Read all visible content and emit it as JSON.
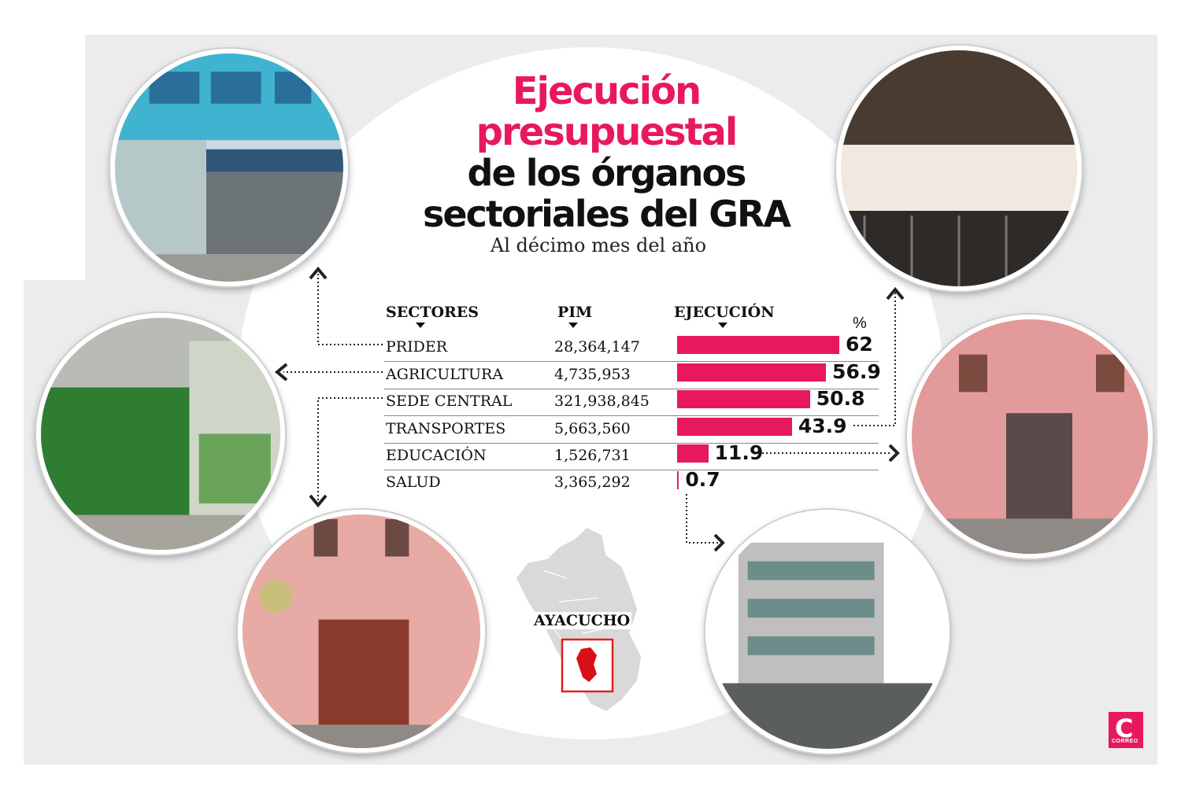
{
  "title": {
    "line1": "Ejecución",
    "line2": "presupuestal",
    "line3": "de los órganos",
    "line4": "sectoriales del GRA"
  },
  "subtitle": "Al décimo mes del año",
  "map_label": "AYACUCHO",
  "logo": {
    "letter": "C",
    "text": "CORREO"
  },
  "colors": {
    "accent": "#e8185f",
    "text": "#111111",
    "background": "#ececec"
  },
  "chart_data": {
    "type": "bar",
    "orientation": "horizontal",
    "headers": {
      "sector": "SECTORES",
      "pim": "PIM",
      "execution": "EJECUCIÓN",
      "unit": "%"
    },
    "categories": [
      "PRIDER",
      "AGRICULTURA",
      "SEDE CENTRAL",
      "TRANSPORTES",
      "EDUCACIÓN",
      "SALUD"
    ],
    "pim": [
      "28,364,147",
      "4,735,953",
      "321,938,845",
      "5,663,560",
      "1,526,731",
      "3,365,292"
    ],
    "values": [
      62,
      56.9,
      50.8,
      43.9,
      11.9,
      0.7
    ],
    "value_labels": [
      "62",
      "56.9",
      "50.8",
      "43.9",
      "11.9",
      "0.7"
    ],
    "xlim": [
      0,
      100
    ]
  }
}
